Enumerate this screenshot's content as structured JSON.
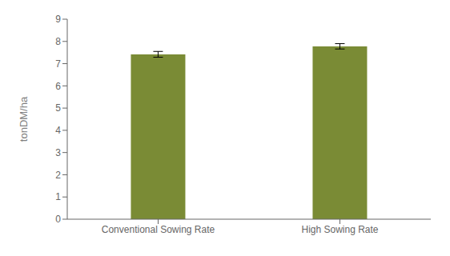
{
  "chart_data": {
    "type": "bar",
    "categories": [
      "Conventional Sowing Rate",
      "High Sowing Rate"
    ],
    "values": [
      7.42,
      7.78
    ],
    "errors": [
      0.13,
      0.12
    ],
    "color": "#7a8b35",
    "ylabel": "tonDM/ha",
    "ylim": [
      0,
      9
    ],
    "yticks": [
      0,
      1,
      2,
      3,
      4,
      5,
      6,
      7,
      8,
      9
    ],
    "grid": false
  }
}
